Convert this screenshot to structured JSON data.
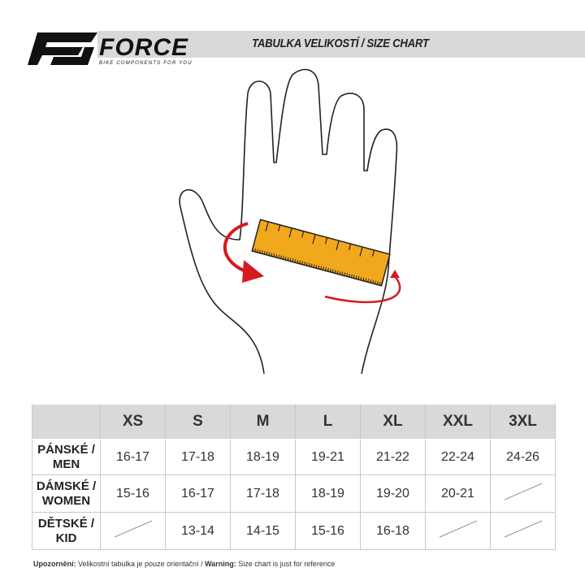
{
  "header": {
    "brand": "FORCE",
    "tagline": "BIKE COMPONENTS FOR YOU",
    "title": "TABULKA VELIKOSTÍ / SIZE CHART"
  },
  "colors": {
    "ruler": "#f2a81d",
    "arrow": "#d71920",
    "header_bg": "#d9d9d9"
  },
  "table": {
    "columns": [
      "XS",
      "S",
      "M",
      "L",
      "XL",
      "XXL",
      "3XL"
    ],
    "rows": [
      {
        "label_cz": "PÁNSKÉ /",
        "label_en": "MEN",
        "values": [
          "16-17",
          "17-18",
          "18-19",
          "19-21",
          "21-22",
          "22-24",
          "24-26"
        ]
      },
      {
        "label_cz": "DÁMSKÉ /",
        "label_en": "WOMEN",
        "values": [
          "15-16",
          "16-17",
          "17-18",
          "18-19",
          "19-20",
          "20-21",
          null
        ]
      },
      {
        "label_cz": "DĚTSKÉ /",
        "label_en": "KID",
        "values": [
          null,
          "13-14",
          "14-15",
          "15-16",
          "16-18",
          null,
          null
        ]
      }
    ]
  },
  "note": {
    "label_cz": "Upozornění:",
    "text_cz": " Velikostní tabulka je pouze orientační / ",
    "label_en": "Warning:",
    "text_en": " Size chart is just for reference"
  }
}
